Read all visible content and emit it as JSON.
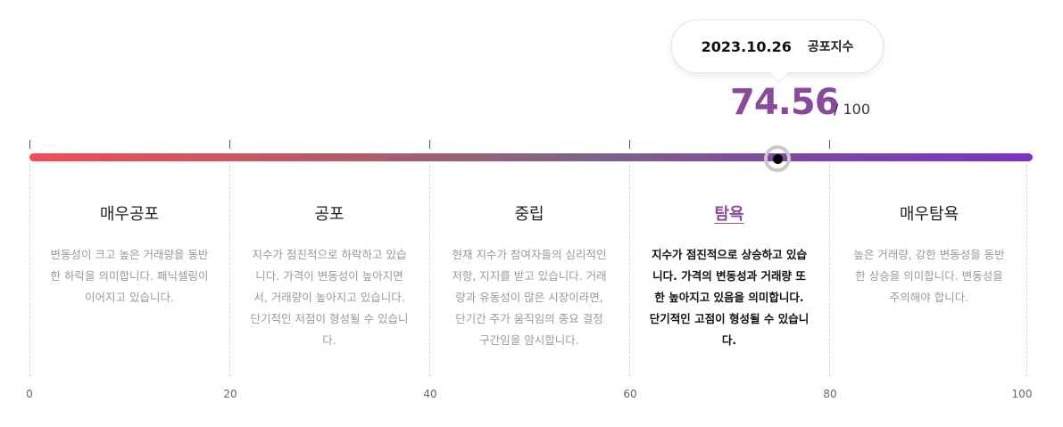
{
  "tooltip": {
    "date": "2023.10.26",
    "label": "공포지수"
  },
  "index": {
    "value": "74.56",
    "max": "/ 100",
    "fraction": 0.7456
  },
  "colors": {
    "accent": "#8a4a9a",
    "start": "#f44c55",
    "end": "#7b33c1"
  },
  "zones": [
    {
      "title": "매우공포",
      "desc": "변동성이 크고 높은 거래량을 동반한 하락을 의미합니다. 패닉셀링이 이어지고 있습니다.",
      "active": false
    },
    {
      "title": "공포",
      "desc": "지수가 점진적으로 하락하고 있습니다. 가격이 변동성이 높아지면서, 거래량이 높아지고 있습니다. 단기적인 저점이 형성될 수 있습니다.",
      "active": false
    },
    {
      "title": "중립",
      "desc": "현재 지수가 참여자들의 심리적인 저항, 지지를 받고 있습니다. 거래량과 유동성이 많은 시장이라면, 단기간 주가 움직임의 중요 결정 구간임을 암시합니다.",
      "active": false
    },
    {
      "title": "탐욕",
      "desc": "지수가 점진적으로 상승하고 있습니다. 가격의 변동성과 거래량 또한 높아지고 있음을 의미합니다. 단기적인 고점이 형성될 수 있습니다.",
      "active": true
    },
    {
      "title": "매우탐욕",
      "desc": "높은 거래량, 강한 변동성을 동반한 상승을 의미합니다. 변동성을 주의해야 합니다.",
      "active": false
    }
  ],
  "axis": [
    "0",
    "20",
    "40",
    "60",
    "80",
    "100"
  ]
}
